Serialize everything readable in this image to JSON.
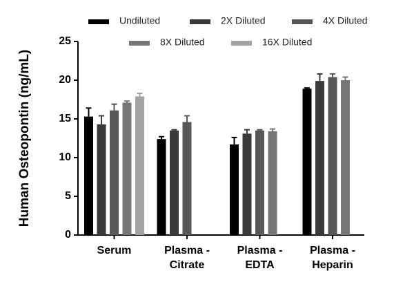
{
  "chart_data": {
    "type": "bar",
    "y_label": "Human Osteopontin (ng/mL)",
    "categories": [
      "Serum",
      "Plasma - Citrate",
      "Plasma - EDTA",
      "Plasma - Heparin"
    ],
    "series": [
      {
        "name": "Undiluted",
        "color": "#000000",
        "values": [
          15.3,
          12.4,
          11.7,
          18.9
        ],
        "errors": [
          1.1,
          0.3,
          0.9,
          0.1
        ]
      },
      {
        "name": "2X Diluted",
        "color": "#3a3a3a",
        "values": [
          14.3,
          13.5,
          13.1,
          19.9
        ],
        "errors": [
          1.1,
          0.1,
          0.5,
          0.9
        ]
      },
      {
        "name": "4X Diluted",
        "color": "#575757",
        "values": [
          16.1,
          14.6,
          13.5,
          20.4
        ],
        "errors": [
          0.8,
          0.8,
          0.1,
          0.4
        ]
      },
      {
        "name": "8X Diluted",
        "color": "#767676",
        "values": [
          17.1,
          null,
          13.4,
          20.0
        ],
        "errors": [
          0.2,
          null,
          0.3,
          0.4
        ]
      },
      {
        "name": "16X Diluted",
        "color": "#a3a3a3",
        "values": [
          17.9,
          null,
          null,
          null
        ],
        "errors": [
          0.4,
          null,
          null,
          null
        ]
      }
    ],
    "ylim": [
      0,
      25
    ],
    "yticks": [
      0,
      5,
      10,
      15,
      20,
      25
    ]
  }
}
